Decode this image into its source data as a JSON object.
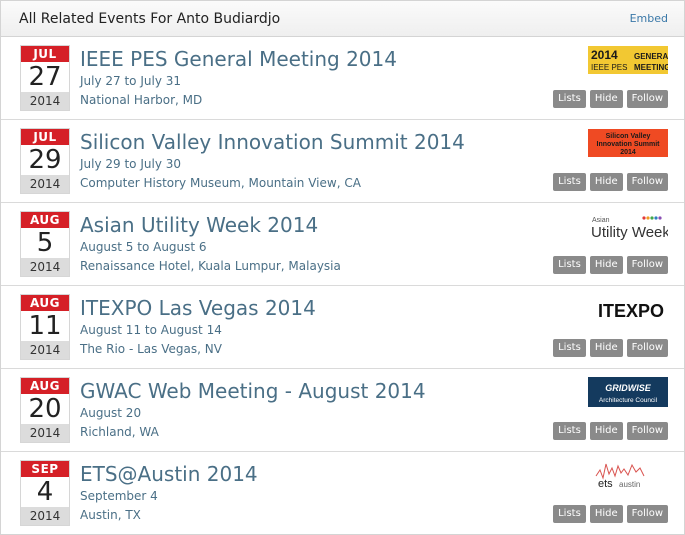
{
  "header": {
    "title": "All Related Events For Anto Budiardjo",
    "embed_label": "Embed"
  },
  "buttons": {
    "lists": "Lists",
    "hide": "Hide",
    "follow": "Follow"
  },
  "events": [
    {
      "month": "JUL",
      "day": "27",
      "year": "2014",
      "title": "IEEE PES General Meeting 2014",
      "dates": "July 27 to July 31",
      "location": "National Harbor, MD",
      "logo_text": [
        "2014",
        "IEEE PES",
        "GENERAL",
        "MEETING"
      ]
    },
    {
      "month": "JUL",
      "day": "29",
      "year": "2014",
      "title": "Silicon Valley Innovation Summit 2014",
      "dates": "July 29 to July 30",
      "location": "Computer History Museum, Mountain View, CA",
      "logo_text": [
        "Silicon Valley",
        "Innovation Summit",
        "2014"
      ]
    },
    {
      "month": "AUG",
      "day": "5",
      "year": "2014",
      "title": "Asian Utility Week 2014",
      "dates": "August 5 to August 6",
      "location": "Renaissance Hotel, Kuala Lumpur, Malaysia",
      "logo_text": [
        "Asian",
        "Utility Week"
      ]
    },
    {
      "month": "AUG",
      "day": "11",
      "year": "2014",
      "title": "ITEXPO Las Vegas 2014",
      "dates": "August 11 to August 14",
      "location": "The Rio - Las Vegas, NV",
      "logo_text": [
        "ITEXPO"
      ]
    },
    {
      "month": "AUG",
      "day": "20",
      "year": "2014",
      "title": "GWAC Web Meeting - August 2014",
      "dates": "August 20",
      "location": "Richland, WA",
      "logo_text": [
        "GRIDWISE",
        "Architecture Council"
      ]
    },
    {
      "month": "SEP",
      "day": "4",
      "year": "2014",
      "title": "ETS@Austin 2014",
      "dates": "September 4",
      "location": "Austin, TX",
      "logo_text": [
        "ets",
        "austin"
      ]
    }
  ]
}
